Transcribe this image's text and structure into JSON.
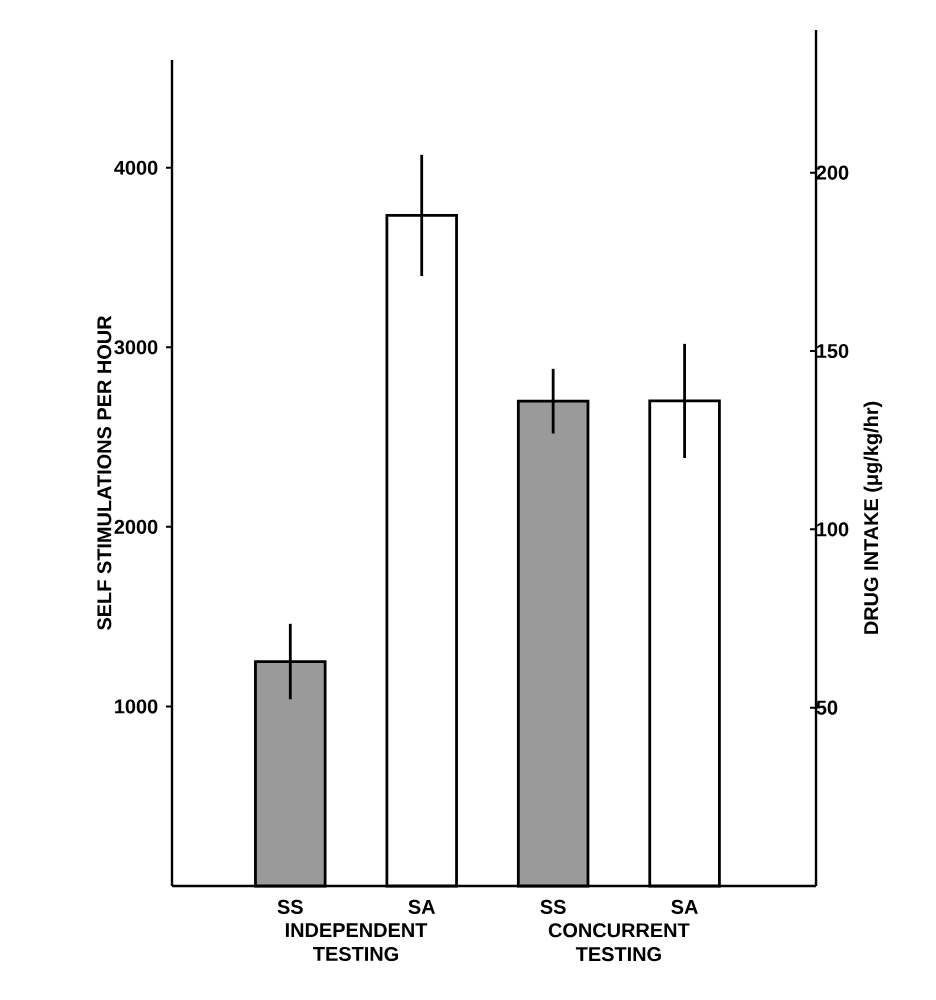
{
  "chart_data": {
    "type": "bar",
    "categories": [
      "SS",
      "SA",
      "SS",
      "SA"
    ],
    "ylabel": "SELF STIMULATIONS PER HOUR",
    "y2label": "DRUG INTAKE (μg/kg/hr)",
    "ylim": [
      0,
      4600
    ],
    "yticks": [
      1000,
      2000,
      3000,
      4000
    ],
    "y2lim": [
      0,
      240
    ],
    "y2ticks": [
      50,
      100,
      150,
      200
    ],
    "series": [
      {
        "color": "#9a9a9a",
        "values": [
          1250,
          null,
          2700,
          null
        ],
        "errors": [
          210,
          null,
          180,
          null
        ]
      },
      {
        "color": "#ffffff",
        "axis": "y2",
        "values": [
          null,
          188,
          null,
          136
        ],
        "errors": [
          null,
          17,
          null,
          16
        ]
      }
    ],
    "annotations": [
      "INDEPENDENT TESTING",
      "CONCURRENT TESTING"
    ]
  }
}
